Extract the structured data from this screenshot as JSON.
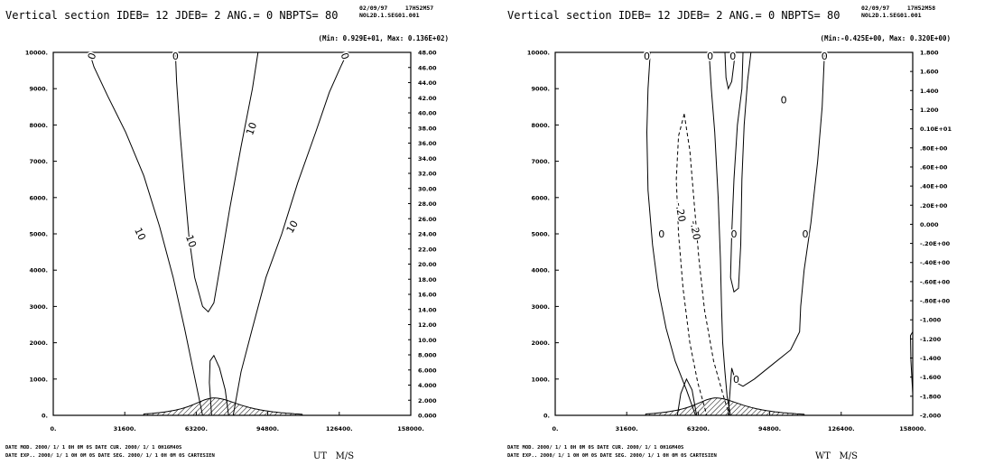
{
  "chart_data": [
    {
      "type": "contour",
      "title": "Vertical section IDEB= 12 JDEB=  2 ANG.=  0 NBPTS= 80",
      "date": "02/09/97",
      "time": "17H52M57",
      "run_id": "NOL2D.1.SEG01.001",
      "minmax": "(Min: 0.929E+01, Max: 0.136E+02)",
      "xlim": [
        0,
        158000
      ],
      "ylim": [
        0,
        10000
      ],
      "x_ticks": [
        "0.",
        "31600.",
        "63200.",
        "94800.",
        "126400.",
        "158000."
      ],
      "y_ticks": [
        "0.",
        "1000.",
        "2000.",
        "3000.",
        "4000.",
        "5000.",
        "6000.",
        "7000.",
        "8000.",
        "9000.",
        "10000."
      ],
      "right_ticks": [
        "0.000",
        "2.000",
        "4.000",
        "6.000",
        "8.000",
        "10.00",
        "12.00",
        "14.00",
        "16.00",
        "18.00",
        "20.00",
        "22.00",
        "24.00",
        "26.00",
        "28.00",
        "30.00",
        "32.00",
        "34.00",
        "36.00",
        "38.00",
        "40.00",
        "42.00",
        "44.00",
        "46.00",
        "48.00"
      ],
      "footer1": "DATE MOD. 2000/ 1/ 1    0H 0M 0S    DATE CUR. 2000/ 1/ 1    0H16M40S",
      "footer2": "DATE EXP.. 2000/ 1/ 1    0H 0M 0S    DATE SEG. 2000/ 1/ 1    0H 0M 0S    CARTESIEN",
      "variable": "UT",
      "units": "M/S",
      "contours": [
        {
          "level": "0",
          "style": "solid",
          "points": [
            [
              16000,
              10000
            ],
            [
              18000,
              9600
            ],
            [
              24000,
              8800
            ],
            [
              32000,
              7800
            ],
            [
              40000,
              6600
            ],
            [
              47000,
              5200
            ],
            [
              53000,
              3800
            ],
            [
              58000,
              2400
            ],
            [
              62000,
              1200
            ],
            [
              66000,
              0
            ]
          ]
        },
        {
          "level": "0",
          "style": "solid",
          "points": [
            [
              130000,
              10000
            ],
            [
              127000,
              9600
            ],
            [
              122000,
              8900
            ],
            [
              116000,
              7800
            ],
            [
              108000,
              6400
            ],
            [
              101000,
              5000
            ],
            [
              94000,
              3800
            ],
            [
              88000,
              2400
            ],
            [
              83000,
              1200
            ],
            [
              79500,
              0
            ]
          ]
        },
        {
          "level": "10",
          "style": "solid",
          "points": [
            [
              54000,
              10000
            ],
            [
              54500,
              9200
            ],
            [
              56000,
              7800
            ],
            [
              58000,
              6300
            ],
            [
              60000,
              4900
            ],
            [
              62500,
              3800
            ],
            [
              66000,
              3000
            ],
            [
              68500,
              2850
            ],
            [
              71000,
              3100
            ],
            [
              74000,
              4200
            ],
            [
              78000,
              5700
            ],
            [
              83000,
              7400
            ],
            [
              88000,
              9000
            ],
            [
              90500,
              10000
            ]
          ]
        },
        {
          "level": "",
          "style": "solid",
          "points": [
            [
              70000,
              0
            ],
            [
              69000,
              900
            ],
            [
              69300,
              1500
            ],
            [
              71000,
              1650
            ],
            [
              73500,
              1300
            ],
            [
              76000,
              700
            ],
            [
              77500,
              0
            ]
          ]
        }
      ],
      "contour_labels": [
        {
          "text": "0",
          "x": 17000,
          "y": 9900,
          "angle": -70
        },
        {
          "text": "0",
          "x": 54000,
          "y": 9900,
          "angle": 0
        },
        {
          "text": "0",
          "x": 129000,
          "y": 9900,
          "angle": 70
        },
        {
          "text": "10",
          "x": 87500,
          "y": 7900,
          "angle": -70
        },
        {
          "text": "10",
          "x": 38500,
          "y": 5000,
          "angle": 65
        },
        {
          "text": "10",
          "x": 61000,
          "y": 4800,
          "angle": 70
        },
        {
          "text": "10",
          "x": 105500,
          "y": 5200,
          "angle": -60
        }
      ],
      "orography": {
        "peak_x": 71000,
        "peak_h": 480,
        "base_left": 40000,
        "base_right": 110000
      }
    },
    {
      "type": "contour",
      "title": "Vertical section IDEB= 12 JDEB=  2 ANG.=  0 NBPTS= 80",
      "date": "02/09/97",
      "time": "17H52M58",
      "run_id": "NOL2D.1.SEG01.001",
      "minmax": "(Min:-0.425E+00, Max: 0.320E+00)",
      "xlim": [
        0,
        158000
      ],
      "ylim": [
        0,
        10000
      ],
      "x_ticks": [
        "0.",
        "31600.",
        "63200.",
        "94800.",
        "126400.",
        "158000."
      ],
      "y_ticks": [
        "0.",
        "1000.",
        "2000.",
        "3000.",
        "4000.",
        "5000.",
        "6000.",
        "7000.",
        "8000.",
        "9000.",
        "10000."
      ],
      "right_ticks": [
        "-2.000",
        "-1.800",
        "-1.600",
        "-1.400",
        "-1.200",
        "-1.000",
        "-.80E+00",
        "-.60E+00",
        "-.40E+00",
        "-.20E+00",
        "0.000",
        ".20E+00",
        ".40E+00",
        ".60E+00",
        ".80E+00",
        "0.10E+01",
        "1.200",
        "1.400",
        "1.600",
        "1.800"
      ],
      "footer1": "DATE MOD. 2000/ 1/ 1    0H 0M 0S    DATE CUR. 2000/ 1/ 1    0H16M40S",
      "footer2": "DATE EXP.. 2000/ 1/ 1    0H 0M 0S    DATE SEG. 2000/ 1/ 1    0H 0M 0S    CARTESIEN",
      "variable": "WT",
      "units": "M/S",
      "contours": [
        {
          "level": "0",
          "style": "solid",
          "points": [
            [
              42000,
              10000
            ],
            [
              41000,
              9000
            ],
            [
              40500,
              7800
            ],
            [
              41000,
              6200
            ],
            [
              43000,
              4700
            ],
            [
              45500,
              3500
            ],
            [
              49000,
              2400
            ],
            [
              53000,
              1500
            ],
            [
              58000,
              700
            ],
            [
              62000,
              0
            ]
          ]
        },
        {
          "level": "0",
          "style": "solid",
          "points": [
            [
              68000,
              10000
            ],
            [
              69000,
              9000
            ],
            [
              70500,
              7800
            ],
            [
              72000,
              6000
            ],
            [
              73000,
              4300
            ],
            [
              73500,
              3000
            ],
            [
              74000,
              2000
            ],
            [
              75000,
              1200
            ],
            [
              76000,
              500
            ],
            [
              77500,
              0
            ]
          ]
        },
        {
          "level": "0",
          "style": "solid",
          "points": [
            [
              83000,
              10000
            ],
            [
              82500,
              9000
            ],
            [
              81500,
              8500
            ],
            [
              80500,
              8000
            ],
            [
              79000,
              6500
            ],
            [
              78000,
              5000
            ],
            [
              77500,
              3800
            ],
            [
              79000,
              3400
            ],
            [
              81000,
              3500
            ],
            [
              82000,
              4700
            ],
            [
              82500,
              6500
            ],
            [
              83500,
              8000
            ],
            [
              85000,
              9200
            ],
            [
              86500,
              10000
            ]
          ]
        },
        {
          "level": "0",
          "style": "solid",
          "points": [
            [
              75000,
              10000
            ],
            [
              75500,
              9300
            ],
            [
              76500,
              9000
            ],
            [
              78000,
              9200
            ],
            [
              79000,
              9700
            ],
            [
              79500,
              10000
            ]
          ]
        },
        {
          "level": "0",
          "style": "solid",
          "points": [
            [
              119000,
              10000
            ],
            [
              118000,
              8500
            ],
            [
              116000,
              7000
            ],
            [
              113000,
              5300
            ],
            [
              110000,
              4000
            ],
            [
              108500,
              3000
            ],
            [
              108000,
              2300
            ],
            [
              104000,
              1800
            ],
            [
              96000,
              1400
            ],
            [
              88000,
              1000
            ],
            [
              83000,
              800
            ],
            [
              80000,
              900
            ],
            [
              78000,
              1300
            ],
            [
              76500,
              0
            ]
          ]
        },
        {
          "level": "-.20",
          "style": "dashed",
          "points": [
            [
              57000,
              8300
            ],
            [
              54500,
              7700
            ],
            [
              53500,
              6500
            ],
            [
              54500,
              5000
            ],
            [
              56500,
              3500
            ],
            [
              59500,
              2000
            ],
            [
              63000,
              900
            ],
            [
              67000,
              0
            ]
          ]
        },
        {
          "level": "-.20",
          "style": "dashed",
          "points": [
            [
              57000,
              8300
            ],
            [
              59500,
              7300
            ],
            [
              61500,
              5800
            ],
            [
              63500,
              4300
            ],
            [
              66000,
              2900
            ],
            [
              70000,
              1500
            ],
            [
              74500,
              500
            ],
            [
              77000,
              0
            ]
          ]
        },
        {
          "level": "",
          "style": "solid",
          "points": [
            [
              54000,
              0
            ],
            [
              55500,
              600
            ],
            [
              58000,
              1000
            ],
            [
              60500,
              700
            ],
            [
              62500,
              0
            ]
          ]
        },
        {
          "level": "",
          "style": "solid",
          "points": [
            [
              158000,
              600
            ],
            [
              157200,
              1500
            ],
            [
              157000,
              2200
            ],
            [
              158000,
              2300
            ]
          ]
        }
      ],
      "contour_labels": [
        {
          "text": "0",
          "x": 40500,
          "y": 9900,
          "angle": 0
        },
        {
          "text": "0",
          "x": 68500,
          "y": 9900,
          "angle": 0
        },
        {
          "text": "0",
          "x": 78500,
          "y": 9900,
          "angle": 0
        },
        {
          "text": "0",
          "x": 119000,
          "y": 9900,
          "angle": 0
        },
        {
          "text": "0",
          "x": 101000,
          "y": 8700,
          "angle": 0
        },
        {
          "text": "-.20",
          "x": 55500,
          "y": 5600,
          "angle": 80
        },
        {
          "text": "-.20",
          "x": 62000,
          "y": 5100,
          "angle": 80
        },
        {
          "text": "0",
          "x": 47000,
          "y": 5000,
          "angle": 0
        },
        {
          "text": "0",
          "x": 79000,
          "y": 5000,
          "angle": 0
        },
        {
          "text": "0",
          "x": 110500,
          "y": 5000,
          "angle": 0
        },
        {
          "text": "0",
          "x": 80000,
          "y": 1000,
          "angle": 0
        }
      ],
      "orography": {
        "peak_x": 71000,
        "peak_h": 480,
        "base_left": 40000,
        "base_right": 110000
      }
    }
  ]
}
